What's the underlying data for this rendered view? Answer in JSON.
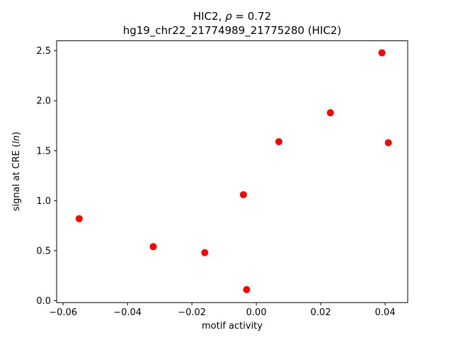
{
  "chart_data": {
    "type": "scatter",
    "title": {
      "line1_pre": "HIC2, ",
      "line1_italic": "ρ",
      "line1_post": " = 0.72",
      "line2": "hg19_chr22_21774989_21775280 (HIC2)"
    },
    "xlabel": "motif activity",
    "ylabel_pre": "signal at CRE (",
    "ylabel_italic": "ln",
    "ylabel_post": ")",
    "marker_color": "#ff0000",
    "axis_color": "#000000",
    "points": [
      {
        "x": -0.055,
        "y": 0.82
      },
      {
        "x": -0.032,
        "y": 0.54
      },
      {
        "x": -0.016,
        "y": 0.48
      },
      {
        "x": -0.004,
        "y": 1.06
      },
      {
        "x": -0.003,
        "y": 0.11
      },
      {
        "x": 0.007,
        "y": 1.59
      },
      {
        "x": 0.023,
        "y": 1.88
      },
      {
        "x": 0.039,
        "y": 2.48
      },
      {
        "x": 0.041,
        "y": 1.58
      }
    ],
    "xlim": [
      -0.062,
      0.047
    ],
    "ylim": [
      -0.02,
      2.6
    ],
    "xticks": [
      -0.06,
      -0.04,
      -0.02,
      0.0,
      0.02,
      0.04
    ],
    "yticks": [
      0.0,
      0.5,
      1.0,
      1.5,
      2.0,
      2.5
    ],
    "x_tick_decimals": 2,
    "y_tick_decimals": 1,
    "grid": false,
    "legend": null
  }
}
